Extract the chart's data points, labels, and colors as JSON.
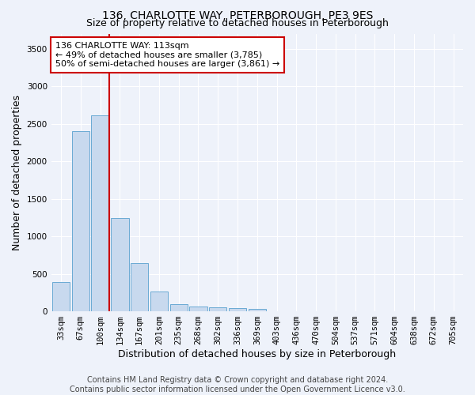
{
  "title": "136, CHARLOTTE WAY, PETERBOROUGH, PE3 9ES",
  "subtitle": "Size of property relative to detached houses in Peterborough",
  "xlabel": "Distribution of detached houses by size in Peterborough",
  "ylabel": "Number of detached properties",
  "footer_line1": "Contains HM Land Registry data © Crown copyright and database right 2024.",
  "footer_line2": "Contains public sector information licensed under the Open Government Licence v3.0.",
  "categories": [
    "33sqm",
    "67sqm",
    "100sqm",
    "134sqm",
    "167sqm",
    "201sqm",
    "235sqm",
    "268sqm",
    "302sqm",
    "336sqm",
    "369sqm",
    "403sqm",
    "436sqm",
    "470sqm",
    "504sqm",
    "537sqm",
    "571sqm",
    "604sqm",
    "638sqm",
    "672sqm",
    "705sqm"
  ],
  "values": [
    390,
    2400,
    2610,
    1240,
    640,
    260,
    95,
    60,
    55,
    45,
    30,
    0,
    0,
    0,
    0,
    0,
    0,
    0,
    0,
    0,
    0
  ],
  "bar_color": "#c8d9ee",
  "bar_edge_color": "#6aaad4",
  "red_line_x": 2.45,
  "annotation_text": "136 CHARLOTTE WAY: 113sqm\n← 49% of detached houses are smaller (3,785)\n50% of semi-detached houses are larger (3,861) →",
  "annotation_box_color": "#ffffff",
  "annotation_box_edge_color": "#cc0000",
  "ylim": [
    0,
    3700
  ],
  "yticks": [
    0,
    500,
    1000,
    1500,
    2000,
    2500,
    3000,
    3500
  ],
  "background_color": "#eef2fa",
  "grid_color": "#ffffff",
  "title_fontsize": 10,
  "subtitle_fontsize": 9,
  "axis_label_fontsize": 9,
  "tick_fontsize": 7.5,
  "footer_fontsize": 7,
  "annotation_fontsize": 8
}
